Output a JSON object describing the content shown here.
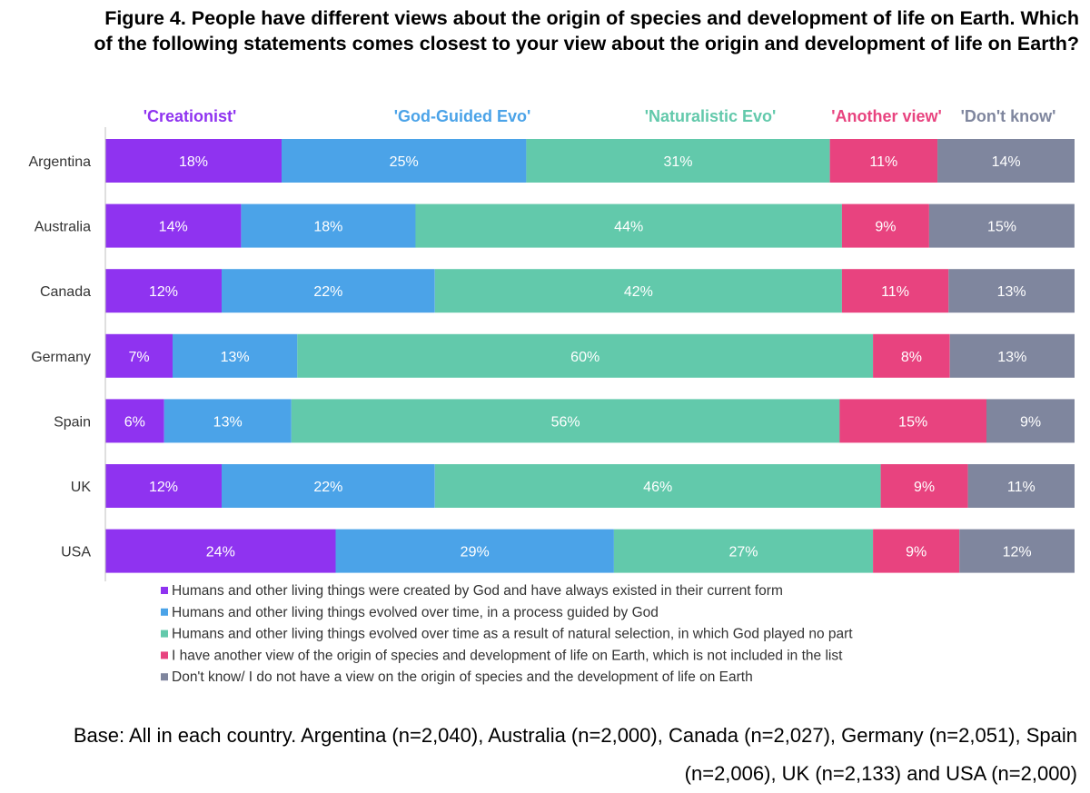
{
  "title": "Figure 4. People have different views about the origin of species and development of life on Earth. Which of the following statements comes closest to your view about the origin and development of life on Earth?",
  "base_note": "Base: All in each country. Argentina (n=2,040), Australia (n=2,000), Canada (n=2,027), Germany (n=2,051), Spain (n=2,006), UK (n=2,133) and USA (n=2,000)",
  "colors": {
    "creationist": "#8f33f0",
    "god_guided": "#4ba3e8",
    "naturalistic": "#62c9ab",
    "another": "#e8437f",
    "dont_know": "#7f869e"
  },
  "chart_data": {
    "type": "bar",
    "orientation": "horizontal",
    "stacked": true,
    "categories": [
      "Argentina",
      "Australia",
      "Canada",
      "Germany",
      "Spain",
      "UK",
      "USA"
    ],
    "series": [
      {
        "name": "'Creationist'",
        "legend": "Humans and other living things were created by God and have always existed in their current form",
        "color": "#8f33f0",
        "values": [
          18,
          14,
          12,
          7,
          6,
          12,
          24
        ]
      },
      {
        "name": "'God-Guided Evo'",
        "legend": "Humans and other living things evolved over time, in a process guided by God",
        "color": "#4ba3e8",
        "values": [
          25,
          18,
          22,
          13,
          13,
          22,
          29
        ]
      },
      {
        "name": "'Naturalistic Evo'",
        "legend": "Humans and other living things evolved over time as a result of natural selection, in which God played no part",
        "color": "#62c9ab",
        "values": [
          31,
          44,
          42,
          60,
          56,
          46,
          27
        ]
      },
      {
        "name": "'Another view'",
        "legend": "I have another view of the origin of species and development of life on Earth, which is not included in the list",
        "color": "#e8437f",
        "values": [
          11,
          9,
          11,
          8,
          15,
          9,
          9
        ]
      },
      {
        "name": "'Don't know'",
        "legend": "Don't know/ I do not have a view on the origin of species and the development of life on Earth",
        "color": "#7f869e",
        "values": [
          14,
          15,
          13,
          13,
          9,
          11,
          12
        ]
      }
    ],
    "value_suffix": "%",
    "grid": false,
    "legend_position": "bottom"
  }
}
